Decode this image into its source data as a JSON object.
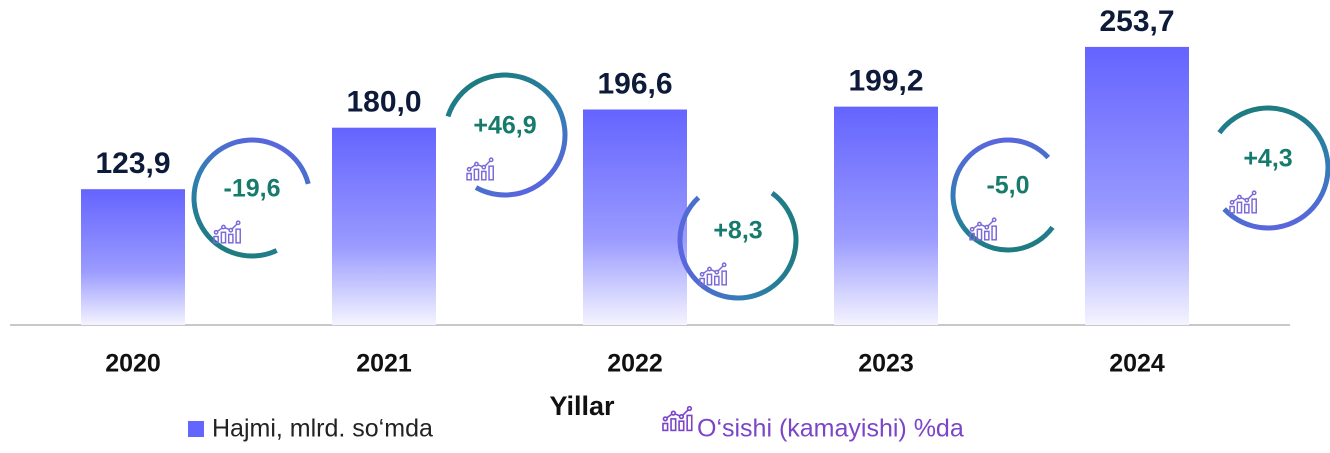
{
  "chart_data": {
    "type": "bar",
    "categories": [
      "2020",
      "2021",
      "2022",
      "2023",
      "2024"
    ],
    "x_label": "Yillar",
    "ylim": [
      0,
      260
    ],
    "series": [
      {
        "name": "Hajmi, mlrd. so‘mda",
        "color": "#6464ff",
        "values": [
          123.9,
          180.0,
          196.6,
          199.2,
          253.7
        ],
        "value_labels": [
          "123,9",
          "180,0",
          "196,6",
          "199,2",
          "253,7"
        ]
      },
      {
        "name": "O‘sishi (kamayishi) %da",
        "color": "#167a6c",
        "values": [
          -19.6,
          46.9,
          8.3,
          -5.0,
          4.3
        ],
        "value_labels": [
          "-19,6",
          "+46,9",
          "+8,3",
          "-5,0",
          "+4,3"
        ]
      }
    ]
  }
}
